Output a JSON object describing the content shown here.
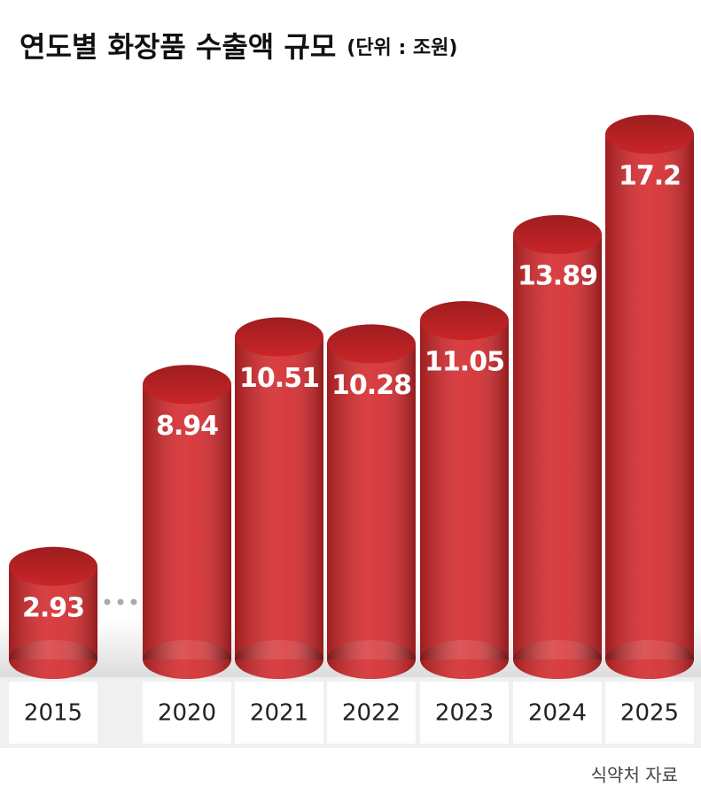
{
  "chart_data": {
    "type": "bar",
    "title": "연도별 화장품 수출액 규모",
    "subtitle": "(단위 : 조원)",
    "categories": [
      "2015",
      "2020",
      "2021",
      "2022",
      "2023",
      "2024",
      "2025"
    ],
    "values": [
      2.93,
      8.94,
      10.51,
      10.28,
      11.05,
      13.89,
      17.2
    ],
    "color": "#d3272a",
    "source": "식약처 자료"
  }
}
